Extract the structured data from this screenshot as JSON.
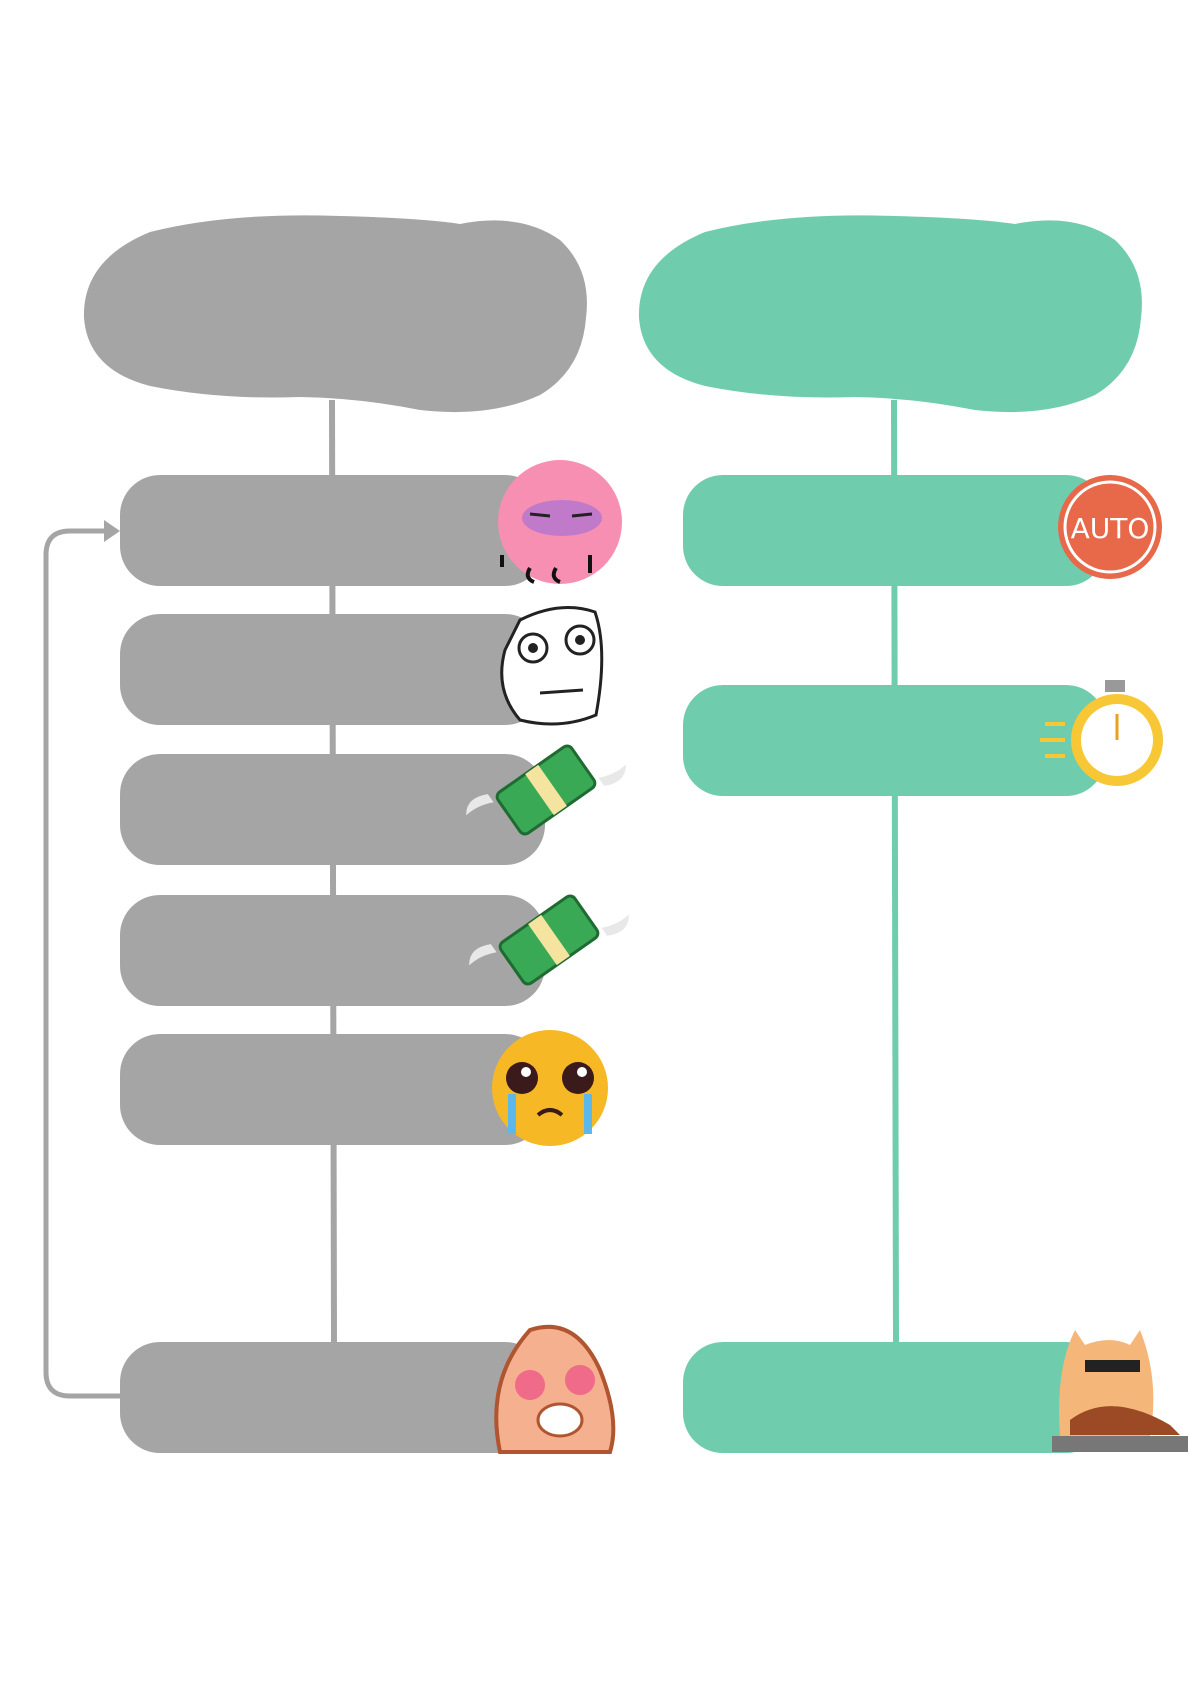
{
  "colors": {
    "left": "#a5a5a5",
    "right": "#6fcdad",
    "auto_badge": "#e8684a",
    "background": "#ffffff"
  },
  "left_column": {
    "header": "",
    "steps": [
      {
        "icon": "exhausted-brain-icon"
      },
      {
        "icon": "skeptical-face-icon"
      },
      {
        "icon": "money-with-wings-icon"
      },
      {
        "icon": "money-with-wings-icon"
      },
      {
        "icon": "crying-face-icon"
      },
      {
        "icon": "angry-face-icon"
      }
    ],
    "loop_arrow": "loop-back-arrow"
  },
  "right_column": {
    "header": "",
    "steps": [
      {
        "icon": "auto-badge-icon",
        "badge_text": "AUTO"
      },
      {
        "icon": "stopwatch-icon"
      },
      {
        "icon": "cool-cat-sunglasses-icon"
      }
    ]
  }
}
